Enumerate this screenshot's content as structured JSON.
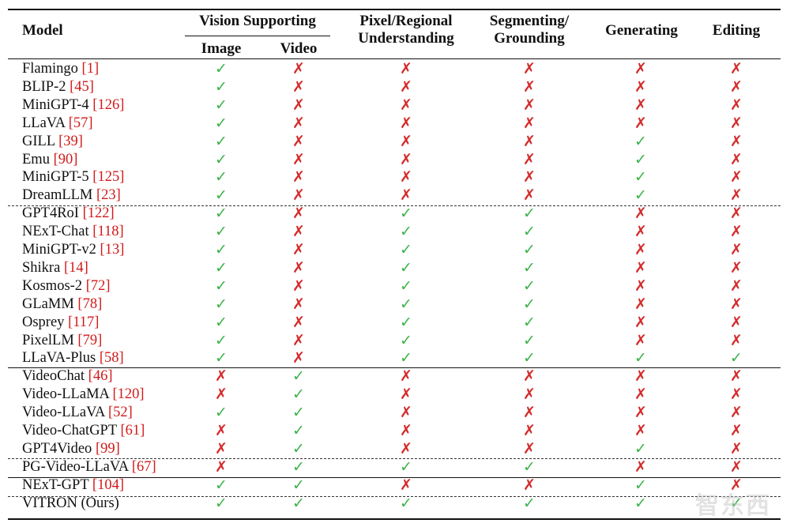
{
  "header": {
    "model": "Model",
    "vision_supporting": "Vision Supporting",
    "image": "Image",
    "video": "Video",
    "pixel_line1": "Pixel/Regional",
    "pixel_line2": "Understanding",
    "seg_line1": "Segmenting/",
    "seg_line2": "Grounding",
    "generating": "Generating",
    "editing": "Editing"
  },
  "symbols": {
    "yes": "✓",
    "no": "✗"
  },
  "colors": {
    "yes": "#3cb34a",
    "no": "#d42a2a",
    "ref": "#d11a1a"
  },
  "rows": [
    {
      "name": "Flamingo",
      "ref": "[1]",
      "cells": [
        true,
        false,
        false,
        false,
        false,
        false
      ]
    },
    {
      "name": "BLIP-2",
      "ref": "[45]",
      "cells": [
        true,
        false,
        false,
        false,
        false,
        false
      ]
    },
    {
      "name": "MiniGPT-4",
      "ref": "[126]",
      "cells": [
        true,
        false,
        false,
        false,
        false,
        false
      ]
    },
    {
      "name": "LLaVA",
      "ref": "[57]",
      "cells": [
        true,
        false,
        false,
        false,
        false,
        false
      ]
    },
    {
      "name": "GILL",
      "ref": "[39]",
      "cells": [
        true,
        false,
        false,
        false,
        true,
        false
      ]
    },
    {
      "name": "Emu",
      "ref": "[90]",
      "cells": [
        true,
        false,
        false,
        false,
        true,
        false
      ]
    },
    {
      "name": "MiniGPT-5",
      "ref": "[125]",
      "cells": [
        true,
        false,
        false,
        false,
        true,
        false
      ]
    },
    {
      "name": "DreamLLM",
      "ref": "[23]",
      "cells": [
        true,
        false,
        false,
        false,
        true,
        false
      ]
    },
    {
      "name": "GPT4RoI",
      "ref": "[122]",
      "cells": [
        true,
        false,
        true,
        true,
        false,
        false
      ]
    },
    {
      "name": "NExT-Chat",
      "ref": "[118]",
      "cells": [
        true,
        false,
        true,
        true,
        false,
        false
      ]
    },
    {
      "name": "MiniGPT-v2",
      "ref": "[13]",
      "cells": [
        true,
        false,
        true,
        true,
        false,
        false
      ]
    },
    {
      "name": "Shikra",
      "ref": "[14]",
      "cells": [
        true,
        false,
        true,
        true,
        false,
        false
      ]
    },
    {
      "name": "Kosmos-2",
      "ref": "[72]",
      "cells": [
        true,
        false,
        true,
        true,
        false,
        false
      ]
    },
    {
      "name": "GLaMM",
      "ref": "[78]",
      "cells": [
        true,
        false,
        true,
        true,
        false,
        false
      ]
    },
    {
      "name": "Osprey",
      "ref": "[117]",
      "cells": [
        true,
        false,
        true,
        true,
        false,
        false
      ]
    },
    {
      "name": "PixelLM",
      "ref": "[79]",
      "cells": [
        true,
        false,
        true,
        true,
        false,
        false
      ]
    },
    {
      "name": "LLaVA-Plus",
      "ref": "[58]",
      "cells": [
        true,
        false,
        true,
        true,
        true,
        true
      ]
    },
    {
      "name": "VideoChat",
      "ref": "[46]",
      "cells": [
        false,
        true,
        false,
        false,
        false,
        false
      ]
    },
    {
      "name": "Video-LLaMA",
      "ref": "[120]",
      "cells": [
        false,
        true,
        false,
        false,
        false,
        false
      ]
    },
    {
      "name": "Video-LLaVA",
      "ref": "[52]",
      "cells": [
        true,
        true,
        false,
        false,
        false,
        false
      ]
    },
    {
      "name": "Video-ChatGPT",
      "ref": "[61]",
      "cells": [
        false,
        true,
        false,
        false,
        false,
        false
      ]
    },
    {
      "name": "GPT4Video",
      "ref": "[99]",
      "cells": [
        false,
        true,
        false,
        false,
        true,
        false
      ]
    },
    {
      "name": "PG-Video-LLaVA",
      "ref": "[67]",
      "cells": [
        false,
        true,
        true,
        true,
        false,
        false
      ]
    },
    {
      "name": "NExT-GPT",
      "ref": "[104]",
      "cells": [
        true,
        true,
        false,
        false,
        true,
        false
      ]
    },
    {
      "name": "VITRON",
      "ref": "(Ours)",
      "cells": [
        true,
        true,
        true,
        true,
        true,
        true
      ]
    }
  ],
  "watermark": "智东西"
}
